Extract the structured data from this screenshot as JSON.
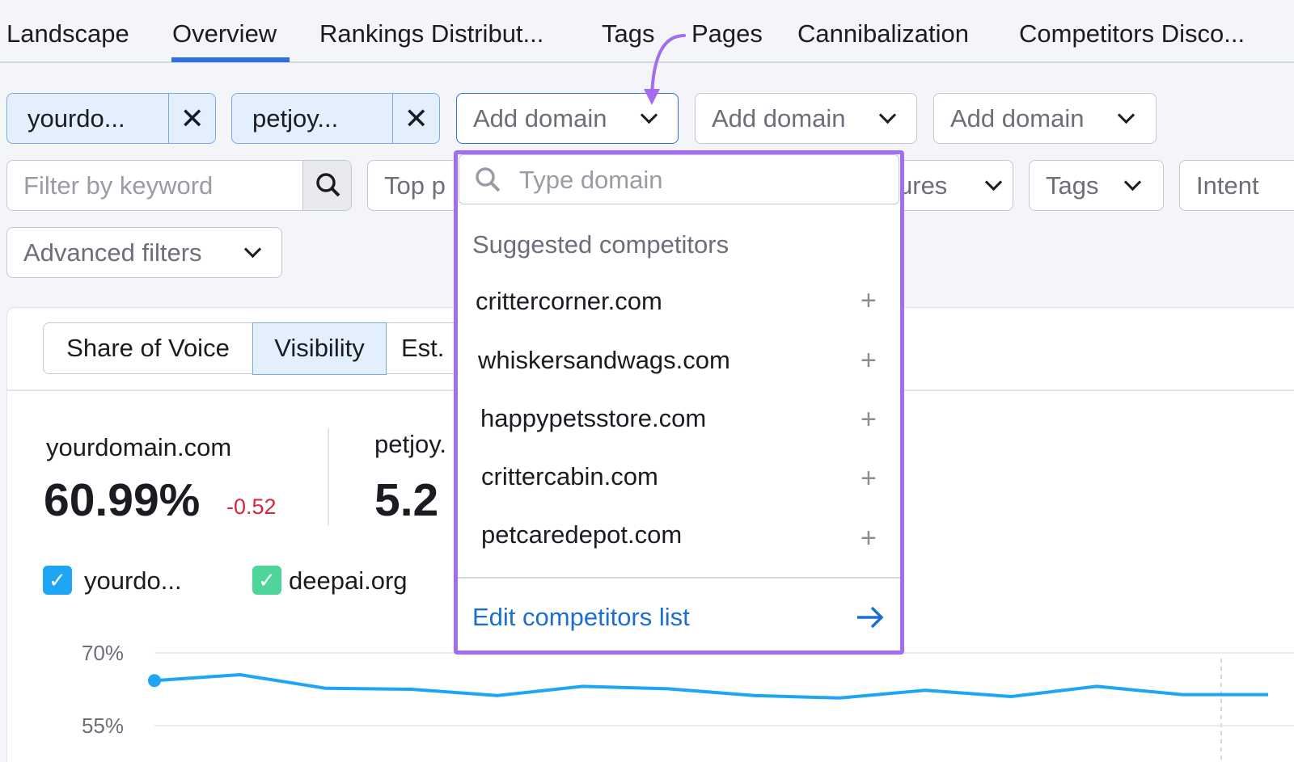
{
  "tabs": [
    "Landscape",
    "Overview",
    "Rankings Distribut...",
    "Tags",
    "Pages",
    "Cannibalization",
    "Competitors Disco..."
  ],
  "domains": [
    "yourdo...",
    "petjoy..."
  ],
  "add_domain": [
    "Add domain",
    "Add domain",
    "Add domain"
  ],
  "filters": {
    "keyword": "Filter by keyword",
    "top": "Top p",
    "features": "ures",
    "tags": "Tags",
    "intent": "Intent",
    "advanced": "Advanced filters"
  },
  "dropdown": {
    "placeholder": "Type domain",
    "heading": "Suggested competitors",
    "items": [
      "crittercorner.com",
      "whiskersandwags.com",
      "happypetsstore.com",
      "crittercabin.com",
      "petcaredepot.com"
    ],
    "edit": "Edit competitors list"
  },
  "metric_tabs": [
    "Share of Voice",
    "Visibility",
    "Est."
  ],
  "summary": [
    {
      "domain": "yourdomain.com",
      "value": "60.99%",
      "change": "-0.52"
    },
    {
      "domain": "petjoy.",
      "value": "5.2"
    }
  ],
  "legend": [
    "yourdo...",
    "deepai.org"
  ],
  "chart_data": {
    "type": "line",
    "categories": [
      null,
      null,
      null,
      null,
      null,
      null,
      null,
      null,
      null,
      null,
      null,
      null,
      null,
      null
    ],
    "series": [
      {
        "name": "yourdo...",
        "color": "#1ea5f5",
        "values": [
          64.3,
          65.5,
          62.7,
          62.5,
          61.2,
          63.1,
          62.6,
          61.2,
          60.7,
          62.3,
          61.0,
          63.1,
          61.4,
          61.4
        ]
      }
    ],
    "ylim": [
      55,
      70
    ],
    "yticks": [
      {
        "value": 70,
        "label": "70%"
      },
      {
        "value": 55,
        "label": "55%"
      }
    ],
    "grid": true
  }
}
